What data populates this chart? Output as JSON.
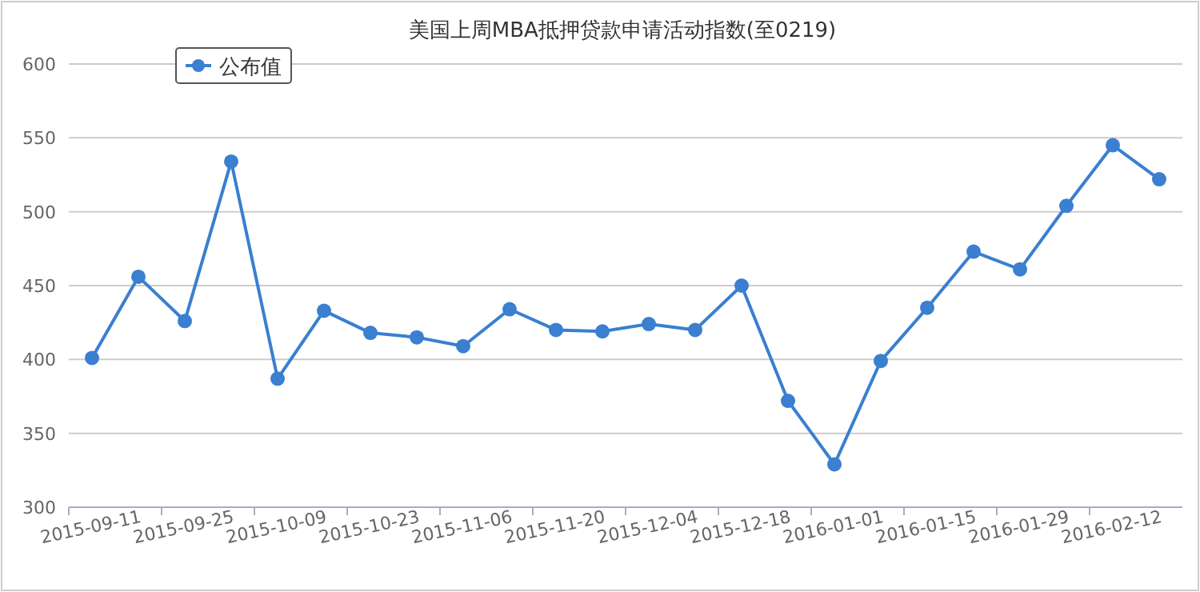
{
  "chart_data": {
    "type": "line",
    "title": "美国上周MBA抵押贷款申请活动指数(至0219)",
    "categories": [
      "2015-09-11",
      null,
      "2015-09-25",
      null,
      "2015-10-09",
      null,
      "2015-10-23",
      null,
      "2015-11-06",
      null,
      "2015-11-20",
      null,
      "2015-12-04",
      null,
      "2015-12-18",
      null,
      "2016-01-01",
      null,
      "2016-01-15",
      null,
      "2016-01-29",
      null,
      "2016-02-12",
      null
    ],
    "series": [
      {
        "name": "公布值",
        "color": "#3a7fd0",
        "values": [
          401,
          456,
          426,
          534,
          387,
          433,
          418,
          415,
          409,
          434,
          420,
          419,
          424,
          420,
          450,
          372,
          329,
          399,
          435,
          473,
          461,
          504,
          545,
          522
        ]
      }
    ],
    "ylim": [
      300,
      600
    ],
    "yticks": [
      300,
      350,
      400,
      450,
      500,
      550,
      600
    ],
    "grid": "y",
    "legend": "top left",
    "marker": "circle",
    "line_style": "solid"
  }
}
